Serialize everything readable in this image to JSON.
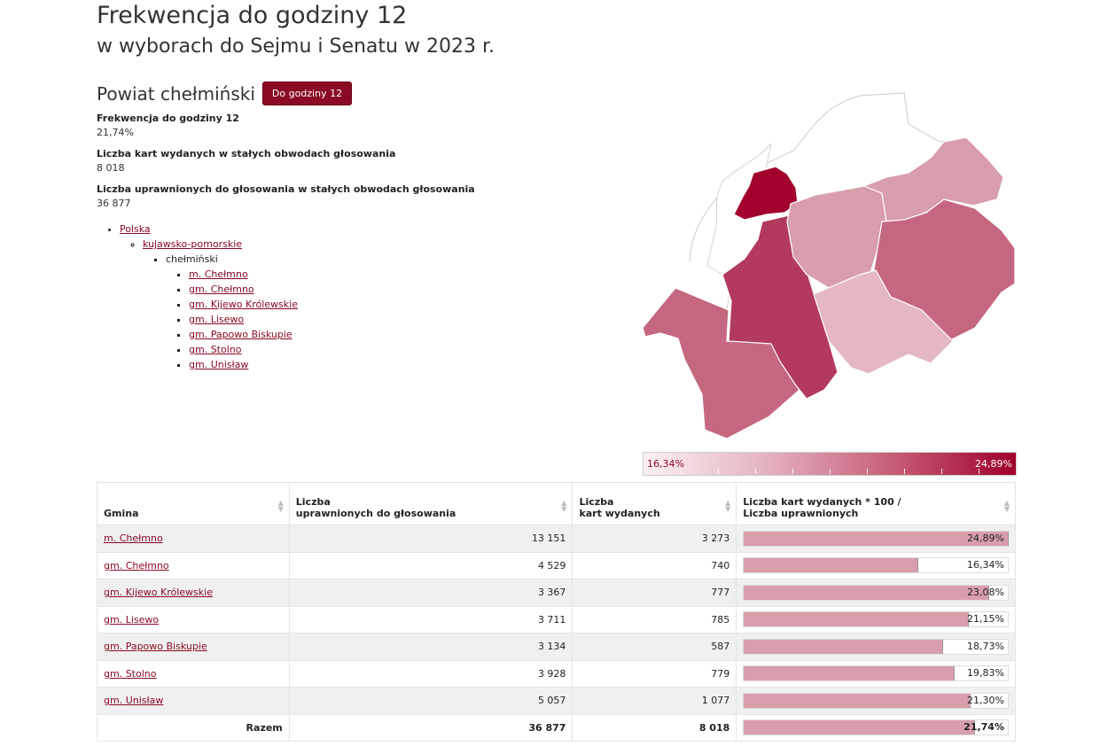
{
  "header": {
    "title": "Frekwencja do godziny 12",
    "subtitle": "w wyborach do Sejmu i Senatu w 2023 r."
  },
  "powiat": {
    "name": "Powiat chełmiński",
    "hour_button": "Do godziny 12"
  },
  "stats": [
    {
      "label": "Frekwencja do godziny 12",
      "value": "21,74%"
    },
    {
      "label": "Liczba kart wydanych w stałych obwodach głosowania",
      "value": "8 018"
    },
    {
      "label": "Liczba uprawnionych do głosowania w stałych obwodach głosowania",
      "value": "36 877"
    }
  ],
  "breadcrumb": {
    "country": "Polska",
    "voivodeship": "kujawsko-pomorskie",
    "county": "chełmiński",
    "gminy": [
      "m. Chełmno",
      "gm. Chełmno",
      "gm. Kijewo Królewskie",
      "gm. Lisewo",
      "gm. Papowo Biskupie",
      "gm. Stolno",
      "gm. Unisław"
    ]
  },
  "legend": {
    "min": "16,34%",
    "max": "24,89%"
  },
  "colors": {
    "accent": "#8a0a24",
    "bar": "#d89eab",
    "row_alt": "#f0f0f0"
  },
  "table": {
    "headers": {
      "gmina": "Gmina",
      "uprawnieni_l1": "Liczba",
      "uprawnieni_l2": "uprawnionych do głosowania",
      "karty_l1": "Liczba",
      "karty_l2": "kart wydanych",
      "frek_l1": "Liczba kart wydanych * 100 /",
      "frek_l2": "Liczba uprawnionych"
    },
    "rows": [
      {
        "name": "m. Chełmno",
        "uprawnieni": "13 151",
        "karty": "3 273",
        "pct_label": "24,89%",
        "pct": 24.89
      },
      {
        "name": "gm. Chełmno",
        "uprawnieni": "4 529",
        "karty": "740",
        "pct_label": "16,34%",
        "pct": 16.34
      },
      {
        "name": "gm. Kijewo Królewskie",
        "uprawnieni": "3 367",
        "karty": "777",
        "pct_label": "23,08%",
        "pct": 23.08
      },
      {
        "name": "gm. Lisewo",
        "uprawnieni": "3 711",
        "karty": "785",
        "pct_label": "21,15%",
        "pct": 21.15
      },
      {
        "name": "gm. Papowo Biskupie",
        "uprawnieni": "3 134",
        "karty": "587",
        "pct_label": "18,73%",
        "pct": 18.73
      },
      {
        "name": "gm. Stolno",
        "uprawnieni": "3 928",
        "karty": "779",
        "pct_label": "19,83%",
        "pct": 19.83
      },
      {
        "name": "gm. Unisław",
        "uprawnieni": "5 057",
        "karty": "1 077",
        "pct_label": "21,30%",
        "pct": 21.3
      }
    ],
    "total": {
      "label": "Razem",
      "uprawnieni": "36 877",
      "karty": "8 018",
      "pct_label": "21,74%",
      "pct": 21.74
    }
  }
}
